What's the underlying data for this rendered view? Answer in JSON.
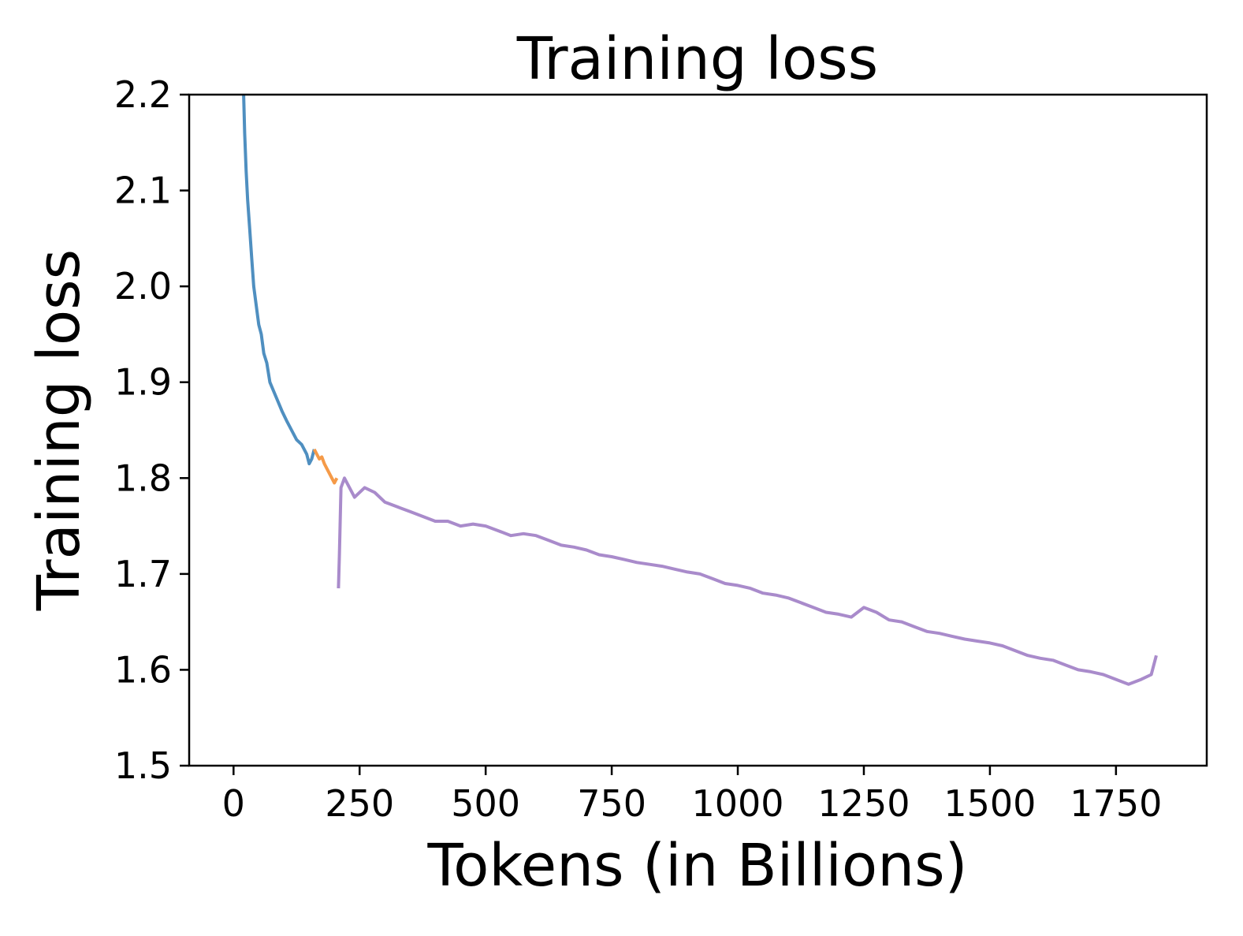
{
  "chart_data": {
    "type": "line",
    "title": "Training loss",
    "xlabel": "Tokens (in Billions)",
    "ylabel": "Training loss",
    "xlim": [
      -88,
      1930
    ],
    "ylim": [
      1.5,
      2.2
    ],
    "xticks": [
      0,
      250,
      500,
      750,
      1000,
      1250,
      1500,
      1750
    ],
    "xtick_labels": [
      "0",
      "250",
      "500",
      "750",
      "1000",
      "1250",
      "1500",
      "1750"
    ],
    "yticks": [
      1.5,
      1.6,
      1.7,
      1.8,
      1.9,
      2.0,
      2.1,
      2.2
    ],
    "ytick_labels": [
      "1.5",
      "1.6",
      "1.7",
      "1.8",
      "1.9",
      "2.0",
      "2.1",
      "2.2"
    ],
    "grid": false,
    "legend": "none",
    "series": [
      {
        "color": "#4f8fc0",
        "x": [
          20,
          22,
          25,
          28,
          32,
          36,
          40,
          45,
          50,
          55,
          60,
          66,
          72,
          80,
          88,
          96,
          105,
          115,
          125,
          135,
          145,
          150,
          155,
          160
        ],
        "y": [
          2.2,
          2.16,
          2.12,
          2.09,
          2.06,
          2.03,
          2.0,
          1.98,
          1.96,
          1.95,
          1.93,
          1.92,
          1.9,
          1.89,
          1.88,
          1.87,
          1.86,
          1.85,
          1.84,
          1.835,
          1.825,
          1.815,
          1.82,
          1.83
        ]
      },
      {
        "color": "#f59a48",
        "x": [
          160,
          165,
          170,
          175,
          180,
          185,
          190,
          195,
          200,
          205
        ],
        "y": [
          1.83,
          1.825,
          1.82,
          1.822,
          1.815,
          1.81,
          1.805,
          1.8,
          1.795,
          1.8
        ]
      },
      {
        "color": "#a98bcb",
        "x": [
          208,
          210,
          213,
          220,
          240,
          260,
          280,
          300,
          325,
          350,
          375,
          400,
          425,
          450,
          475,
          500,
          525,
          550,
          575,
          600,
          625,
          650,
          675,
          700,
          725,
          750,
          775,
          800,
          825,
          850,
          875,
          900,
          925,
          950,
          975,
          1000,
          1025,
          1050,
          1075,
          1100,
          1125,
          1150,
          1175,
          1200,
          1225,
          1250,
          1275,
          1300,
          1325,
          1350,
          1375,
          1400,
          1425,
          1450,
          1475,
          1500,
          1525,
          1550,
          1575,
          1600,
          1625,
          1650,
          1675,
          1700,
          1725,
          1750,
          1775,
          1800,
          1820,
          1830
        ],
        "y": [
          1.685,
          1.72,
          1.79,
          1.8,
          1.78,
          1.79,
          1.785,
          1.775,
          1.77,
          1.765,
          1.76,
          1.755,
          1.755,
          1.75,
          1.752,
          1.75,
          1.745,
          1.74,
          1.742,
          1.74,
          1.735,
          1.73,
          1.728,
          1.725,
          1.72,
          1.718,
          1.715,
          1.712,
          1.71,
          1.708,
          1.705,
          1.702,
          1.7,
          1.695,
          1.69,
          1.688,
          1.685,
          1.68,
          1.678,
          1.675,
          1.67,
          1.665,
          1.66,
          1.658,
          1.655,
          1.665,
          1.66,
          1.652,
          1.65,
          1.645,
          1.64,
          1.638,
          1.635,
          1.632,
          1.63,
          1.628,
          1.625,
          1.62,
          1.615,
          1.612,
          1.61,
          1.605,
          1.6,
          1.598,
          1.595,
          1.59,
          1.585,
          1.59,
          1.595,
          1.615
        ]
      }
    ]
  }
}
